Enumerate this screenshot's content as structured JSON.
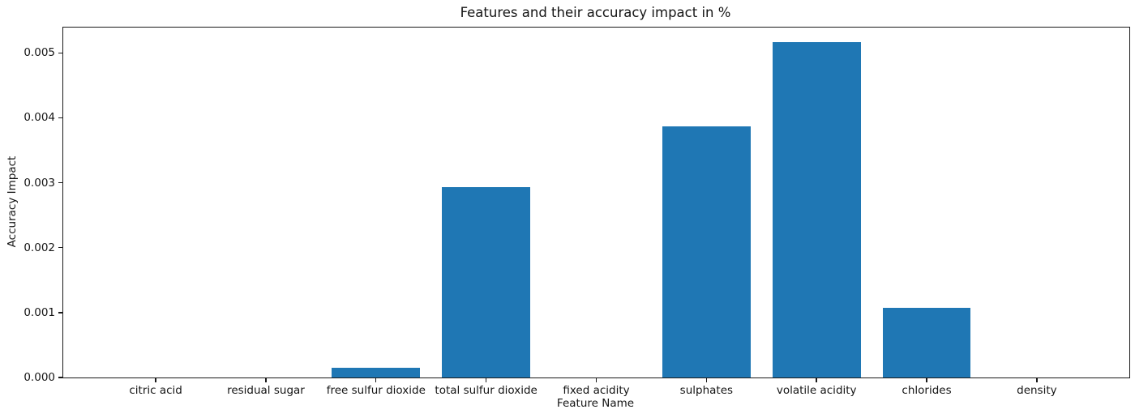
{
  "chart_data": {
    "type": "bar",
    "title": "Features and their accuracy impact in %",
    "xlabel": "Feature Name",
    "ylabel": "Accuracy Impact",
    "categories": [
      "citric acid",
      "residual sugar",
      "free sulfur dioxide",
      "total sulfur dioxide",
      "fixed acidity",
      "sulphates",
      "volatile acidity",
      "chlorides",
      "density"
    ],
    "values": [
      0.0,
      0.0,
      0.00015,
      0.00293,
      0.0,
      0.00387,
      0.00517,
      0.00107,
      0.0
    ],
    "yticks": [
      0.0,
      0.001,
      0.002,
      0.003,
      0.004,
      0.005
    ],
    "ytick_labels": [
      "0.000",
      "0.001",
      "0.002",
      "0.003",
      "0.004",
      "0.005"
    ],
    "ylim": [
      0,
      0.00539
    ],
    "xlim": [
      -0.84,
      8.84
    ],
    "bar_width": 0.8,
    "bar_color": "#1f77b4",
    "grid": false,
    "legend": null,
    "background_color": "#ffffff"
  }
}
